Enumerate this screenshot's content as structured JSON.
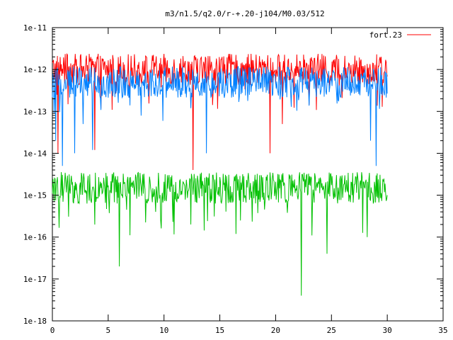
{
  "chart_data": {
    "type": "line",
    "title": "m3/n1.5/q2.0/r-+.20-j104/M0.03/512",
    "xlabel": "",
    "ylabel": "",
    "xlim": [
      0,
      35
    ],
    "ylim": [
      1e-18,
      1e-11
    ],
    "yscale": "log",
    "x_ticks": [
      0,
      5,
      10,
      15,
      20,
      25,
      30,
      35
    ],
    "x_tick_labels": [
      "0",
      "5",
      "10",
      "15",
      "20",
      "25",
      "30",
      "35"
    ],
    "y_ticks": [
      1e-18,
      1e-17,
      1e-16,
      1e-15,
      1e-14,
      1e-13,
      1e-12,
      1e-11
    ],
    "y_tick_labels": [
      "1e-18",
      "1e-17",
      "1e-16",
      "1e-15",
      "1e-14",
      "1e-13",
      "1e-12",
      "1e-11"
    ],
    "grid": false,
    "legend": {
      "position": "top-right",
      "entries": [
        "fort.23"
      ]
    },
    "series": [
      {
        "name": "fort.23",
        "color": "#ff0000",
        "x_range": [
          0,
          30
        ],
        "typical": 1e-12,
        "peak_max": 2.5e-12,
        "dips": [
          {
            "x": 0.5,
            "y": 1e-14
          },
          {
            "x": 3.8,
            "y": 1.2e-14
          },
          {
            "x": 12.6,
            "y": 4e-15
          },
          {
            "x": 19.5,
            "y": 1e-14
          },
          {
            "x": 20.6,
            "y": 5e-14
          }
        ]
      },
      {
        "color": "#0080ff",
        "x_range": [
          0,
          30
        ],
        "typical": 5e-13,
        "dips": [
          {
            "x": 0.3,
            "y": 2e-14
          },
          {
            "x": 0.9,
            "y": 5e-15
          },
          {
            "x": 2.0,
            "y": 1e-14
          },
          {
            "x": 3.6,
            "y": 1.2e-14
          },
          {
            "x": 13.8,
            "y": 1e-14
          },
          {
            "x": 28.5,
            "y": 2e-14
          },
          {
            "x": 29.0,
            "y": 5e-15
          }
        ]
      },
      {
        "color": "#00c000",
        "x_range": [
          0,
          30
        ],
        "typical": 1.5e-15,
        "dips": [
          {
            "x": 6.0,
            "y": 2e-17
          },
          {
            "x": 9.7,
            "y": 2.5e-16
          },
          {
            "x": 12.4,
            "y": 2e-16
          },
          {
            "x": 22.3,
            "y": 4e-18
          },
          {
            "x": 24.6,
            "y": 4e-17
          },
          {
            "x": 28.2,
            "y": 1e-16
          }
        ]
      }
    ]
  }
}
